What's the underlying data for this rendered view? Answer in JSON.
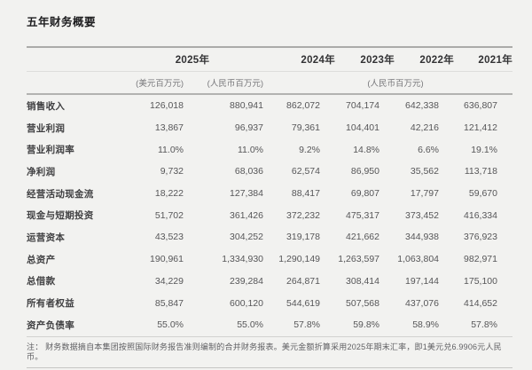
{
  "title": "五年财务概要",
  "table": {
    "year_headers": {
      "y2025": "2025年",
      "y2024": "2024年",
      "y2023": "2023年",
      "y2022": "2022年",
      "y2021": "2021年"
    },
    "units": {
      "usd": "(美元百万元)",
      "rmb_2025": "(人民币百万元)",
      "rmb_years": "(人民币百万元)"
    },
    "rows": [
      {
        "label": "销售收入",
        "values": [
          "126,018",
          "880,941",
          "862,072",
          "704,174",
          "642,338",
          "636,807"
        ]
      },
      {
        "label": "营业利润",
        "values": [
          "13,867",
          "96,937",
          "79,361",
          "104,401",
          "42,216",
          "121,412"
        ]
      },
      {
        "label": "营业利润率",
        "values": [
          "11.0%",
          "11.0%",
          "9.2%",
          "14.8%",
          "6.6%",
          "19.1%"
        ]
      },
      {
        "label": "净利润",
        "values": [
          "9,732",
          "68,036",
          "62,574",
          "86,950",
          "35,562",
          "113,718"
        ]
      },
      {
        "label": "经营活动现金流",
        "values": [
          "18,222",
          "127,384",
          "88,417",
          "69,807",
          "17,797",
          "59,670"
        ]
      },
      {
        "label": "现金与短期投资",
        "values": [
          "51,702",
          "361,426",
          "372,232",
          "475,317",
          "373,452",
          "416,334"
        ]
      },
      {
        "label": "运营资本",
        "values": [
          "43,523",
          "304,252",
          "319,178",
          "421,662",
          "344,938",
          "376,923"
        ]
      },
      {
        "label": "总资产",
        "values": [
          "190,961",
          "1,334,930",
          "1,290,149",
          "1,263,597",
          "1,063,804",
          "982,971"
        ]
      },
      {
        "label": "总借款",
        "values": [
          "34,229",
          "239,284",
          "264,871",
          "308,414",
          "197,144",
          "175,100"
        ]
      },
      {
        "label": "所有者权益",
        "values": [
          "85,847",
          "600,120",
          "544,619",
          "507,568",
          "437,076",
          "414,652"
        ]
      },
      {
        "label": "资产负债率",
        "values": [
          "55.0%",
          "55.0%",
          "57.8%",
          "59.8%",
          "58.9%",
          "57.8%"
        ]
      }
    ]
  },
  "footnote": "注： 财务数据摘自本集团按照国际财务报告准则编制的合并财务报表。美元金额折算采用2025年期末汇率，即1美元兑6.9906元人民币。"
}
